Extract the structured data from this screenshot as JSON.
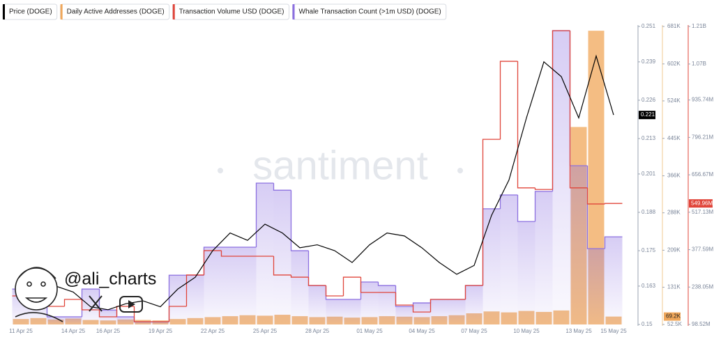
{
  "chart_data": {
    "type": "combo",
    "categories": [
      "11 Apr 25",
      null,
      null,
      "14 Apr 25",
      null,
      "16 Apr 25",
      null,
      null,
      "19 Apr 25",
      null,
      null,
      "22 Apr 25",
      null,
      null,
      "25 Apr 25",
      null,
      null,
      "28 Apr 25",
      null,
      null,
      "01 May 25",
      null,
      null,
      "04 May 25",
      null,
      null,
      "07 May 25",
      null,
      null,
      "10 May 25",
      null,
      null,
      "13 May 25",
      null,
      "15 May 25"
    ],
    "series": [
      {
        "name": "Price (DOGE)",
        "type": "line",
        "axis": "y",
        "color": "#000000",
        "values": [
          0.1585,
          0.161,
          0.163,
          0.161,
          0.156,
          0.155,
          0.157,
          0.158,
          0.156,
          0.162,
          0.166,
          0.175,
          0.181,
          0.1785,
          0.184,
          0.181,
          0.176,
          0.177,
          0.175,
          0.171,
          0.177,
          0.181,
          0.18,
          0.176,
          0.171,
          0.167,
          0.17,
          0.187,
          0.199,
          0.22,
          0.239,
          0.234,
          0.22,
          0.241,
          0.221
        ]
      },
      {
        "name": "Daily Active Addresses (DOGE)",
        "type": "bar",
        "axis": "y2",
        "color": "#f0a75a",
        "values": [
          64000,
          66000,
          63000,
          65000,
          62000,
          61000,
          63000,
          62000,
          61000,
          64000,
          66000,
          68000,
          70000,
          72000,
          71000,
          73000,
          70000,
          68000,
          69000,
          67000,
          68000,
          70000,
          69000,
          68000,
          70000,
          72000,
          76000,
          80000,
          78000,
          81000,
          79000,
          82000,
          469000,
          672000,
          69200
        ],
        "value_labels": [
          null,
          null,
          null,
          null,
          null,
          null,
          null,
          null,
          null,
          null,
          null,
          null,
          null,
          null,
          null,
          null,
          null,
          null,
          null,
          null,
          null,
          null,
          null,
          null,
          null,
          null,
          null,
          null,
          null,
          null,
          null,
          null,
          null,
          null,
          "69.2K"
        ]
      },
      {
        "name": "Transaction Volume USD (DOGE)",
        "type": "step",
        "axis": "y3",
        "color": "#e0453a",
        "values": [
          205000000,
          192000000,
          166000000,
          192000000,
          153000000,
          127000000,
          166000000,
          109000000,
          109000000,
          166000000,
          283000000,
          374000000,
          353000000,
          353000000,
          353000000,
          283000000,
          275000000,
          244000000,
          205000000,
          275000000,
          218000000,
          218000000,
          171000000,
          145000000,
          192000000,
          192000000,
          244000000,
          789000000,
          1080000000,
          608000000,
          602000000,
          1194000000,
          608000000,
          548000000,
          549960000
        ],
        "value_labels": [
          null,
          null,
          null,
          null,
          null,
          null,
          null,
          null,
          null,
          null,
          null,
          null,
          null,
          null,
          null,
          null,
          null,
          null,
          null,
          null,
          null,
          null,
          null,
          null,
          null,
          null,
          null,
          null,
          null,
          null,
          null,
          null,
          null,
          null,
          "549.96M"
        ]
      },
      {
        "name": "Whale Transaction Count (>1m USD) (DOGE)",
        "type": "step-area",
        "axis": "y",
        "color": "#8b6fe0",
        "values": [
          0.162,
          0.162,
          0.1526,
          0.1526,
          0.162,
          0.1549,
          0.1526,
          0.1509,
          0.1509,
          0.1667,
          0.1667,
          0.1762,
          0.1762,
          0.1762,
          0.1979,
          0.1955,
          0.175,
          0.1632,
          0.1585,
          0.1585,
          0.1644,
          0.1632,
          0.1561,
          0.1573,
          0.1585,
          0.1585,
          0.1632,
          0.1892,
          0.1939,
          0.1849,
          0.1951,
          0.2496,
          0.2038,
          0.1757,
          0.1797
        ]
      }
    ],
    "ylim": [
      0.15,
      0.251
    ],
    "yticks": [
      0.251,
      0.239,
      0.226,
      0.213,
      0.201,
      0.188,
      0.175,
      0.163,
      0.15
    ],
    "y2lim": [
      52500,
      681000
    ],
    "y2ticks": [
      {
        "value": 681000,
        "label": "681K"
      },
      {
        "value": 602000,
        "label": "602K"
      },
      {
        "value": 524000,
        "label": "524K"
      },
      {
        "value": 445000,
        "label": "445K"
      },
      {
        "value": 366000,
        "label": "366K"
      },
      {
        "value": 288000,
        "label": "288K"
      },
      {
        "value": 209000,
        "label": "209K"
      },
      {
        "value": 131000,
        "label": "131K"
      },
      {
        "value": 52500,
        "label": "52.5K"
      }
    ],
    "y3lim": [
      98520000,
      1210000000
    ],
    "y3ticks": [
      {
        "value": 1210000000,
        "label": "1.21B"
      },
      {
        "value": 1070000000,
        "label": "1.07B"
      },
      {
        "value": 935740000,
        "label": "935.74M"
      },
      {
        "value": 796210000,
        "label": "796.21M"
      },
      {
        "value": 656670000,
        "label": "656.67M"
      },
      {
        "value": 517130000,
        "label": "517.13M"
      },
      {
        "value": 377590000,
        "label": "377.59M"
      },
      {
        "value": 238050000,
        "label": "238.05M"
      },
      {
        "value": 98520000,
        "label": "98.52M"
      }
    ],
    "watermark": "santiment",
    "author": "@ali_charts"
  }
}
